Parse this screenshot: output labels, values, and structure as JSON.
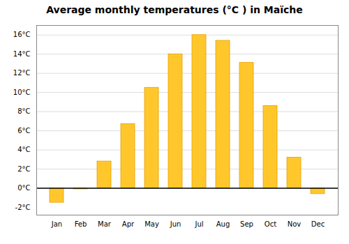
{
  "chart_data": {
    "type": "bar",
    "title": "Average monthly temperatures (°C ) in Maïche",
    "categories": [
      "Jan",
      "Feb",
      "Mar",
      "Apr",
      "May",
      "Jun",
      "Jul",
      "Aug",
      "Sep",
      "Oct",
      "Nov",
      "Dec"
    ],
    "values": [
      -1.5,
      -0.1,
      2.8,
      6.7,
      10.5,
      14.0,
      16.0,
      15.4,
      13.1,
      8.6,
      3.2,
      -0.6
    ],
    "color": "#FFC72C",
    "ylim": [
      -2.8,
      17.0
    ],
    "yticks": [
      {
        "value": 0,
        "label": "0°C"
      },
      {
        "value": 2,
        "label": "2°C"
      },
      {
        "value": 4,
        "label": "4°C"
      },
      {
        "value": 6,
        "label": "6°C"
      },
      {
        "value": 8,
        "label": "8°C"
      },
      {
        "value": 10,
        "label": "10°C"
      },
      {
        "value": 12,
        "label": "12°C"
      },
      {
        "value": 14,
        "label": "14°C"
      },
      {
        "value": 16,
        "label": "16°C"
      }
    ],
    "grid": true,
    "annotations": [
      {
        "text": "-2°C",
        "y": -2
      }
    ]
  }
}
